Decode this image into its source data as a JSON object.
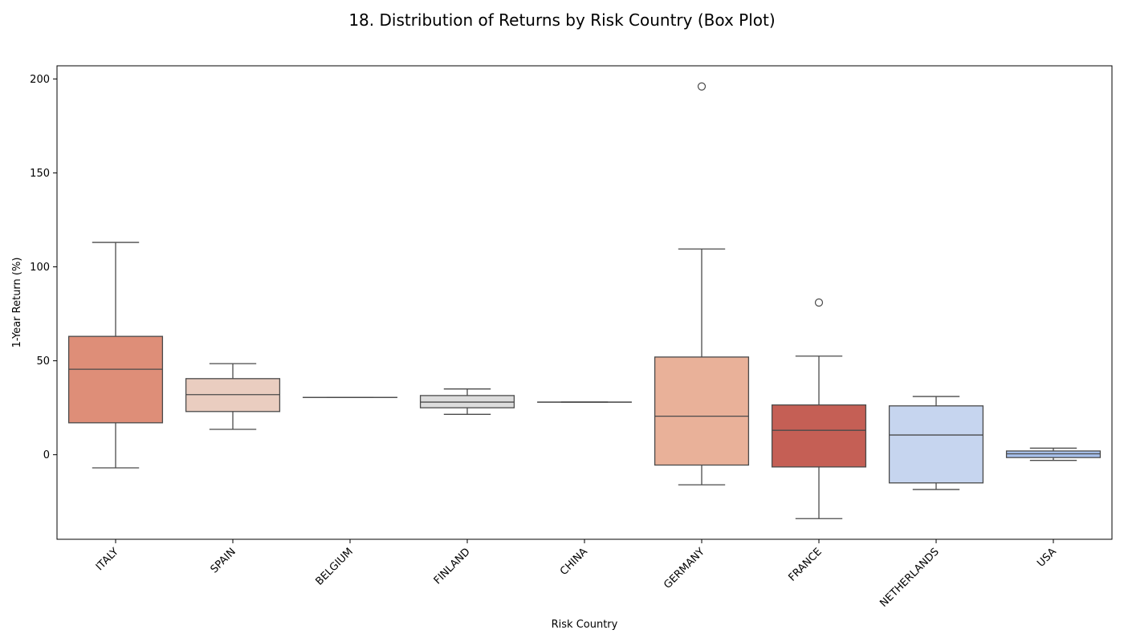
{
  "chart_data": {
    "type": "box",
    "title": "18. Distribution of Returns by Risk Country (Box Plot)",
    "xlabel": "Risk Country",
    "ylabel": "1-Year Return (%)",
    "ylim": [
      -45,
      207
    ],
    "yticks": [
      0,
      50,
      100,
      150,
      200
    ],
    "grid": false,
    "categories": [
      "ITALY",
      "SPAIN",
      "BELGIUM",
      "FINLAND",
      "CHINA",
      "GERMANY",
      "FRANCE",
      "NETHERLANDS",
      "USA"
    ],
    "boxes": [
      {
        "category": "ITALY",
        "whisker_low": -7,
        "q1": 17,
        "median": 45.5,
        "q3": 63,
        "whisker_high": 113,
        "outliers": [],
        "color": "#de8e78"
      },
      {
        "category": "SPAIN",
        "whisker_low": 13.5,
        "q1": 23,
        "median": 32,
        "q3": 40.5,
        "whisker_high": 48.5,
        "outliers": [],
        "color": "#eacdc0"
      },
      {
        "category": "BELGIUM",
        "whisker_low": 30.5,
        "q1": 30.5,
        "median": 30.5,
        "q3": 30.5,
        "whisker_high": 30.5,
        "outliers": [],
        "color": "#d8d8d8"
      },
      {
        "category": "FINLAND",
        "whisker_low": 21.5,
        "q1": 25,
        "median": 28,
        "q3": 31.5,
        "whisker_high": 35,
        "outliers": [],
        "color": "#dcdcdc"
      },
      {
        "category": "CHINA",
        "whisker_low": 28,
        "q1": 28,
        "median": 28,
        "q3": 28,
        "whisker_high": 28,
        "outliers": [],
        "color": "#dedede"
      },
      {
        "category": "GERMANY",
        "whisker_low": -16,
        "q1": -5.5,
        "median": 20.5,
        "q3": 52,
        "whisker_high": 109.5,
        "outliers": [
          196
        ],
        "color": "#e9b199"
      },
      {
        "category": "FRANCE",
        "whisker_low": -34,
        "q1": -6.5,
        "median": 13,
        "q3": 26.5,
        "whisker_high": 52.5,
        "outliers": [
          81
        ],
        "color": "#c55f55"
      },
      {
        "category": "NETHERLANDS",
        "whisker_low": -18.5,
        "q1": -15,
        "median": 10.5,
        "q3": 26,
        "whisker_high": 31,
        "outliers": [],
        "color": "#c6d5ef"
      },
      {
        "category": "USA",
        "whisker_low": -3,
        "q1": -1.5,
        "median": 0.5,
        "q3": 2,
        "whisker_high": 3.5,
        "outliers": [],
        "color": "#a7c0ec"
      }
    ],
    "line_color": "#4a4a4a",
    "axis_color": "#000000"
  }
}
